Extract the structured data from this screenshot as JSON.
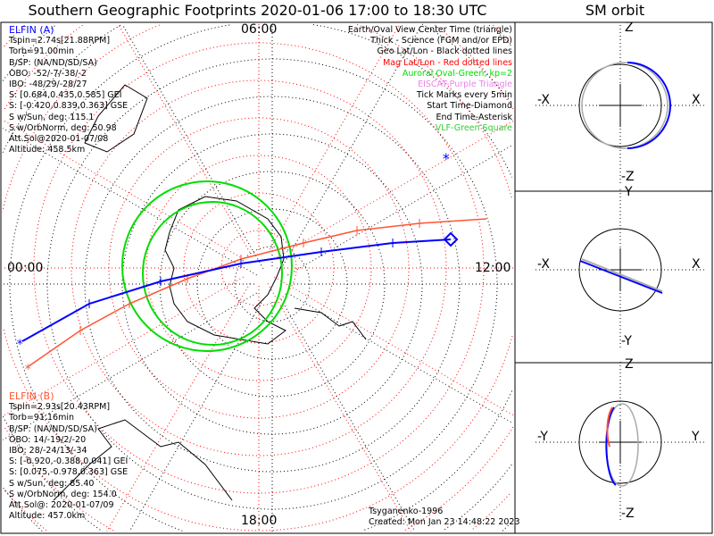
{
  "title": "Southern Geographic Footprints 2020-01-06 17:00 to 18:30 UTC",
  "sm_title": "SM orbit",
  "time_labels": {
    "top": "06:00",
    "right": "12:00",
    "bottom": "18:00",
    "left": "00:00"
  },
  "elfin_a": {
    "name": "ELFIN (A)",
    "lines": [
      "Tspin=2.74s[21.88RPM]",
      "Torb=91.00min",
      "B/SP: (NA/ND/SD/SA)",
      "OBO: -52/-7/-38/-2",
      "IBO: -48/29/-28/27",
      "S: [0.684,0.435,0.585] GEI",
      "S: [-0.420,0.839,0.363] GSE",
      "S w/Sun, deg: 115.1",
      "S w/OrbNorm, deg: 50.98",
      "Att.Sol@2020-01-07/08",
      "Altitude: 458.5km"
    ]
  },
  "elfin_b": {
    "name": "ELFIN (B)",
    "lines": [
      "Tspin=2.93s[20.43RPM]",
      "Torb=91.16min",
      "B/SP: (NA/ND/SD/SA)",
      "OBO: 14/-19/2/-20",
      "IBO: 28/-24/13/-34",
      "S: [-0.920,-0.388,0.041] GEI",
      "S: [0.075,-0.978,0.363] GSE",
      "S w/Sun, deg: 85.40",
      "S w/OrbNorm, deg: 154.0",
      "Att.Sol@: 2020-01-07/09",
      "Altitude: 457.0km"
    ]
  },
  "legend": [
    {
      "text": "Earth/Oval View Center Time (triangle)",
      "color": "#000000"
    },
    {
      "text": "Thick - Science (FGM and/or EPD)",
      "color": "#000000"
    },
    {
      "text": "Geo Lat/Lon - Black dotted lines",
      "color": "#000000"
    },
    {
      "text": "Mag Lat/Lon - Red dotted lines",
      "color": "#ff0000"
    },
    {
      "text": "Auroral Oval-Green, kp=2",
      "color": "#00dd00"
    },
    {
      "text": "EISCAT-Purple Triangle",
      "color": "#ee82ee"
    },
    {
      "text": "Tick Marks every 5min",
      "color": "#000000"
    },
    {
      "text": "Start Time-Diamond",
      "color": "#000000"
    },
    {
      "text": "End Time-Asterisk",
      "color": "#000000"
    },
    {
      "text": "VLF-Green Square",
      "color": "#33cc33"
    }
  ],
  "footer": {
    "model": "Tsyganenko-1996",
    "created": "Created: Mon Jan 23 14:48:22 2023"
  },
  "sm_panels": [
    {
      "top": "Z",
      "bottom": "-Z",
      "left": "-X",
      "right": "X"
    },
    {
      "top": "Y",
      "bottom": "-Y",
      "left": "-X",
      "right": "X"
    },
    {
      "top": "Z",
      "bottom": "-Z",
      "left": "-Y",
      "right": "Y"
    }
  ],
  "colors": {
    "elfin_a": "#0000ff",
    "elfin_b": "#ff5533",
    "oval": "#00dd00",
    "mag_grid": "#ff0000",
    "geo_grid": "#000000"
  }
}
